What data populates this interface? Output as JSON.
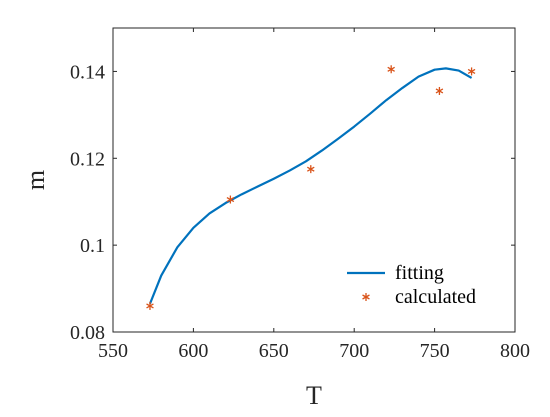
{
  "chart_data": {
    "type": "line",
    "xlabel": "T",
    "ylabel": "m",
    "xlim": [
      550,
      800
    ],
    "ylim": [
      0.08,
      0.15
    ],
    "x_ticks": [
      550,
      600,
      650,
      700,
      750,
      800
    ],
    "x_tick_labels": [
      "550",
      "600",
      "650",
      "700",
      "750",
      "800"
    ],
    "y_ticks": [
      0.08,
      0.1,
      0.12,
      0.14
    ],
    "y_tick_labels": [
      "0.08",
      "0.1",
      "0.12",
      "0.14"
    ],
    "grid": false,
    "legend_position": "bottom-right",
    "series": [
      {
        "name": "fitting",
        "style": "line",
        "color": "#0072BD",
        "x": [
          573,
          580,
          590,
          600,
          610,
          620,
          630,
          640,
          650,
          660,
          670,
          680,
          690,
          700,
          710,
          720,
          730,
          740,
          750,
          757,
          765,
          773
        ],
        "y": [
          0.0865,
          0.093,
          0.0995,
          0.104,
          0.1073,
          0.1097,
          0.1117,
          0.1135,
          0.1153,
          0.1172,
          0.1193,
          0.1218,
          0.1245,
          0.1273,
          0.1303,
          0.1334,
          0.1362,
          0.1388,
          0.1404,
          0.1407,
          0.1402,
          0.1385
        ]
      },
      {
        "name": "calculated",
        "style": "marker",
        "marker": "asterisk",
        "color": "#D95319",
        "x": [
          573,
          623,
          673,
          723,
          753,
          773
        ],
        "y": [
          0.086,
          0.1105,
          0.1175,
          0.1405,
          0.1355,
          0.14
        ]
      }
    ]
  }
}
